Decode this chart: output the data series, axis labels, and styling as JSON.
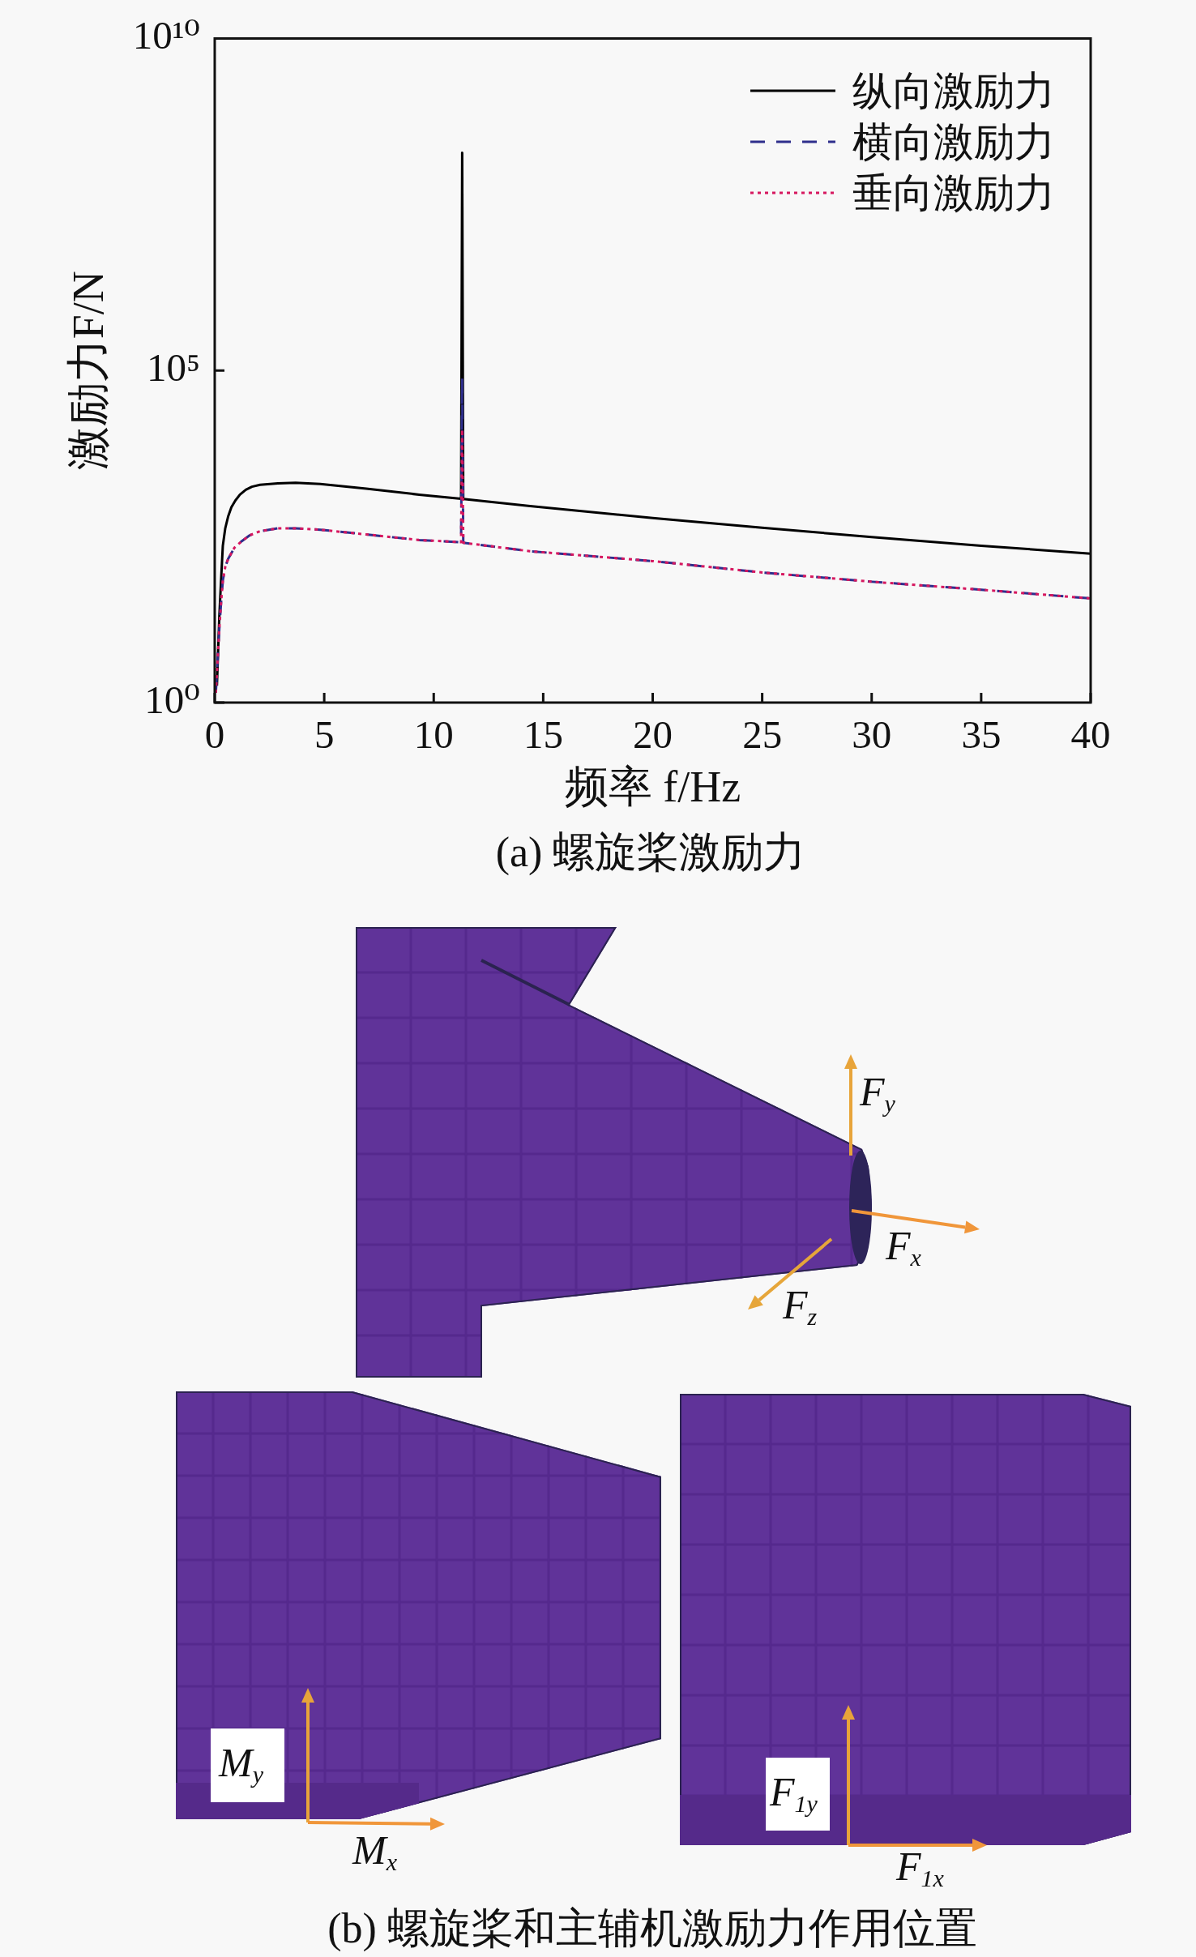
{
  "chart_data": {
    "type": "line",
    "xlabel": "频率 f/Hz",
    "ylabel": "激励力F/N",
    "series": [
      {
        "name": "纵向激励力",
        "color": "#000000",
        "line_style": "solid",
        "x": [
          0.1,
          0.21,
          0.29,
          0.37,
          0.48,
          0.61,
          0.76,
          0.94,
          1.15,
          1.42,
          1.7,
          2.07,
          2.88,
          3.69,
          4.82,
          6.92,
          9.34,
          11.25,
          11.3,
          11.35,
          14.4,
          20,
          25,
          30,
          35,
          40
        ],
        "values": [
          1.8,
          20,
          70,
          230,
          420,
          630,
          870,
          1100,
          1350,
          1600,
          1780,
          1900,
          2000,
          2040,
          1950,
          1660,
          1350,
          1170,
          190000000,
          1160,
          910,
          600,
          430,
          310,
          230,
          175
        ]
      },
      {
        "name": "横向激励力",
        "color": "#2e2e8c",
        "line_style": "dashed",
        "x": [
          0.05,
          0.21,
          0.29,
          0.37,
          0.48,
          0.61,
          0.9,
          1.24,
          1.6,
          2.07,
          2.88,
          3.69,
          4.82,
          6.92,
          9.34,
          11.25,
          11.3,
          11.35,
          14.4,
          20,
          25,
          30,
          35,
          40
        ],
        "values": [
          1.4,
          13,
          32,
          69,
          110,
          145,
          215,
          270,
          330,
          380,
          420,
          420,
          400,
          340,
          280,
          260,
          76000,
          255,
          190,
          135,
          91,
          66,
          50,
          37
        ]
      },
      {
        "name": "垂向激励力",
        "color": "#d6175f",
        "line_style": "dotted",
        "x": [
          0.05,
          0.21,
          0.29,
          0.37,
          0.48,
          0.61,
          0.9,
          1.24,
          1.6,
          2.07,
          2.88,
          3.69,
          4.82,
          6.92,
          9.34,
          11.25,
          11.3,
          11.35,
          14.4,
          20,
          25,
          30,
          35,
          40
        ],
        "values": [
          1.4,
          13,
          32,
          69,
          110,
          145,
          215,
          270,
          330,
          380,
          420,
          420,
          400,
          340,
          280,
          260,
          13000,
          255,
          190,
          135,
          91,
          66,
          50,
          37
        ]
      }
    ],
    "xlim": [
      0,
      40
    ],
    "xticks": [
      0,
      5,
      10,
      15,
      20,
      25,
      30,
      35,
      40
    ],
    "ylim": [
      1,
      10000000000
    ],
    "yticks": [
      {
        "value": 1,
        "label": "10⁰"
      },
      {
        "value": 100000,
        "label": "10⁵"
      },
      {
        "value": 10000000000,
        "label": "10¹⁰"
      }
    ],
    "log": "y",
    "legend": "top right",
    "annotations": [
      "(a) 螺旋桨激励力",
      "F$_{y}$",
      "F$_{x}$",
      "F$_{z}$",
      "M$_{y}$",
      "M$_{x}$",
      "F$_{1y}$",
      "F$_{1x}$",
      "(b) 螺旋桨和主辅机激励力作用位置"
    ]
  }
}
